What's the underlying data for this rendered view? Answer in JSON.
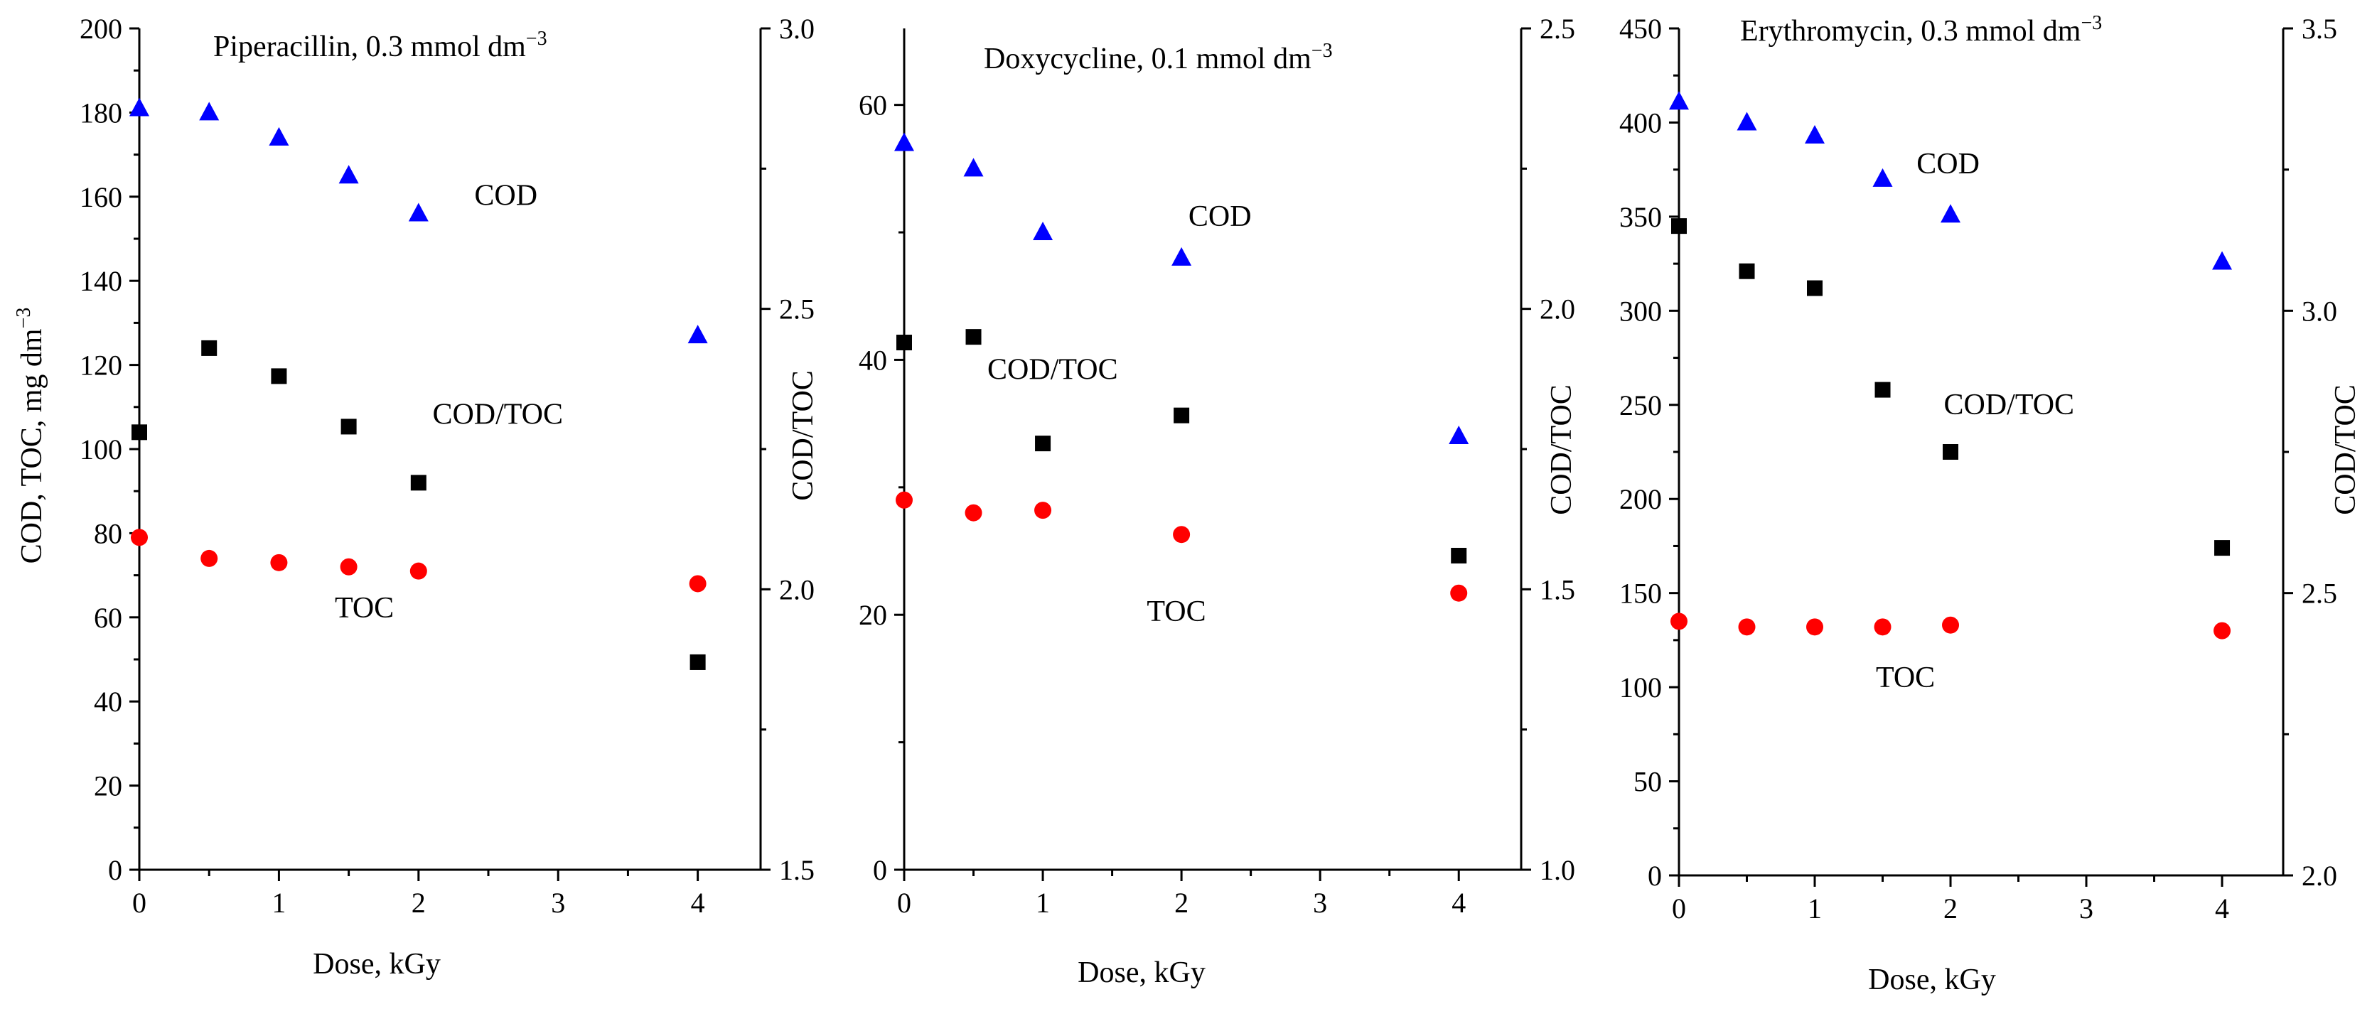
{
  "chart_data": [
    {
      "type": "scatter",
      "title": "Piperacillin, 0.3 mmol dm",
      "title_superscript": "−3",
      "xlabel": "Dose, kGy",
      "ylabel": "COD, TOC, mg dm",
      "ylabel_superscript": "−3",
      "y2label": "COD/TOC",
      "xlim": [
        0,
        4.45
      ],
      "ylim": [
        0,
        200
      ],
      "y2lim": [
        1.5,
        3.0
      ],
      "x_ticks": [
        0,
        1,
        2,
        3,
        4
      ],
      "y_ticks": [
        0,
        20,
        40,
        60,
        80,
        100,
        120,
        140,
        160,
        180,
        200
      ],
      "y2_ticks": [
        "1.5",
        "2.0",
        "2.5",
        "3.0"
      ],
      "series": [
        {
          "name": "COD",
          "marker": "triangle",
          "color": "#0000ff",
          "axis": "left",
          "x": [
            0,
            0.5,
            1,
            1.5,
            2,
            4
          ],
          "values": [
            181,
            180,
            174,
            165,
            156,
            127
          ]
        },
        {
          "name": "TOC",
          "marker": "circle",
          "color": "#ff0000",
          "axis": "left",
          "x": [
            0,
            0.5,
            1,
            1.5,
            2,
            4
          ],
          "values": [
            79,
            74,
            73,
            72,
            71,
            68
          ]
        },
        {
          "name": "COD/TOC",
          "marker": "square",
          "color": "#000000",
          "axis": "right",
          "x": [
            0,
            0.5,
            1,
            1.5,
            2,
            4
          ],
          "values": [
            2.28,
            2.43,
            2.38,
            2.29,
            2.19,
            1.87
          ]
        }
      ],
      "annotations": [
        {
          "text": "COD",
          "x": 2.4,
          "y": 158
        },
        {
          "text": "COD/TOC",
          "x": 2.1,
          "y": 106
        },
        {
          "text": "TOC",
          "x": 1.4,
          "y": 60
        }
      ]
    },
    {
      "type": "scatter",
      "title": "Doxycycline, 0.1 mmol dm",
      "title_superscript": "−3",
      "xlabel": "Dose, kGy",
      "ylabel": "",
      "y2label": "COD/TOC",
      "xlim": [
        0,
        4.45
      ],
      "ylim": [
        0,
        66
      ],
      "y2lim": [
        1.0,
        2.5
      ],
      "x_ticks": [
        0,
        1,
        2,
        3,
        4
      ],
      "y_ticks": [
        0,
        20,
        40,
        60
      ],
      "y2_ticks": [
        "1.0",
        "1.5",
        "2.0",
        "2.5"
      ],
      "series": [
        {
          "name": "COD",
          "marker": "triangle",
          "color": "#0000ff",
          "axis": "left",
          "x": [
            0,
            0.5,
            1,
            2,
            4
          ],
          "values": [
            57,
            55,
            50,
            48,
            34
          ]
        },
        {
          "name": "TOC",
          "marker": "circle",
          "color": "#ff0000",
          "axis": "left",
          "x": [
            0,
            0.5,
            1,
            2,
            4
          ],
          "values": [
            29,
            28,
            28.2,
            26.3,
            21.7
          ]
        },
        {
          "name": "COD/TOC",
          "marker": "square",
          "color": "#000000",
          "axis": "right",
          "x": [
            0,
            0.5,
            1,
            2,
            4
          ],
          "values": [
            1.94,
            1.95,
            1.76,
            1.81,
            1.56
          ]
        }
      ],
      "annotations": [
        {
          "text": "COD",
          "x": 2.05,
          "y": 50.5
        },
        {
          "text": "COD/TOC",
          "x": 0.6,
          "y": 38.5
        },
        {
          "text": "TOC",
          "x": 1.75,
          "y": 19.5
        }
      ]
    },
    {
      "type": "scatter",
      "title": "Erythromycin, 0.3 mmol dm",
      "title_superscript": "−3",
      "xlabel": "Dose, kGy",
      "ylabel": "",
      "y2label": "COD/TOC",
      "xlim": [
        0,
        4.45
      ],
      "ylim": [
        0,
        450
      ],
      "y2lim": [
        2.0,
        3.5
      ],
      "x_ticks": [
        0,
        1,
        2,
        3,
        4
      ],
      "y_ticks": [
        0,
        50,
        100,
        150,
        200,
        250,
        300,
        350,
        400,
        450
      ],
      "y2_ticks": [
        "2.0",
        "2.5",
        "3.0",
        "3.5"
      ],
      "series": [
        {
          "name": "COD",
          "marker": "triangle",
          "color": "#0000ff",
          "axis": "left",
          "x": [
            0,
            0.5,
            1,
            1.5,
            2,
            4
          ],
          "values": [
            411,
            400,
            393,
            370,
            351,
            326
          ]
        },
        {
          "name": "TOC",
          "marker": "circle",
          "color": "#ff0000",
          "axis": "left",
          "x": [
            0,
            0.5,
            1,
            1.5,
            2,
            4
          ],
          "values": [
            135,
            132,
            132,
            132,
            133,
            130
          ]
        },
        {
          "name": "COD/TOC",
          "marker": "square",
          "color": "#000000",
          "axis": "right",
          "x": [
            0,
            0.5,
            1,
            1.5,
            2,
            4
          ],
          "values": [
            3.15,
            3.07,
            3.04,
            2.86,
            2.75,
            2.58
          ]
        }
      ],
      "annotations": [
        {
          "text": "COD",
          "x": 1.75,
          "y": 373
        },
        {
          "text": "COD/TOC",
          "x": 1.95,
          "y": 245
        },
        {
          "text": "TOC",
          "x": 1.45,
          "y": 100
        }
      ]
    }
  ]
}
